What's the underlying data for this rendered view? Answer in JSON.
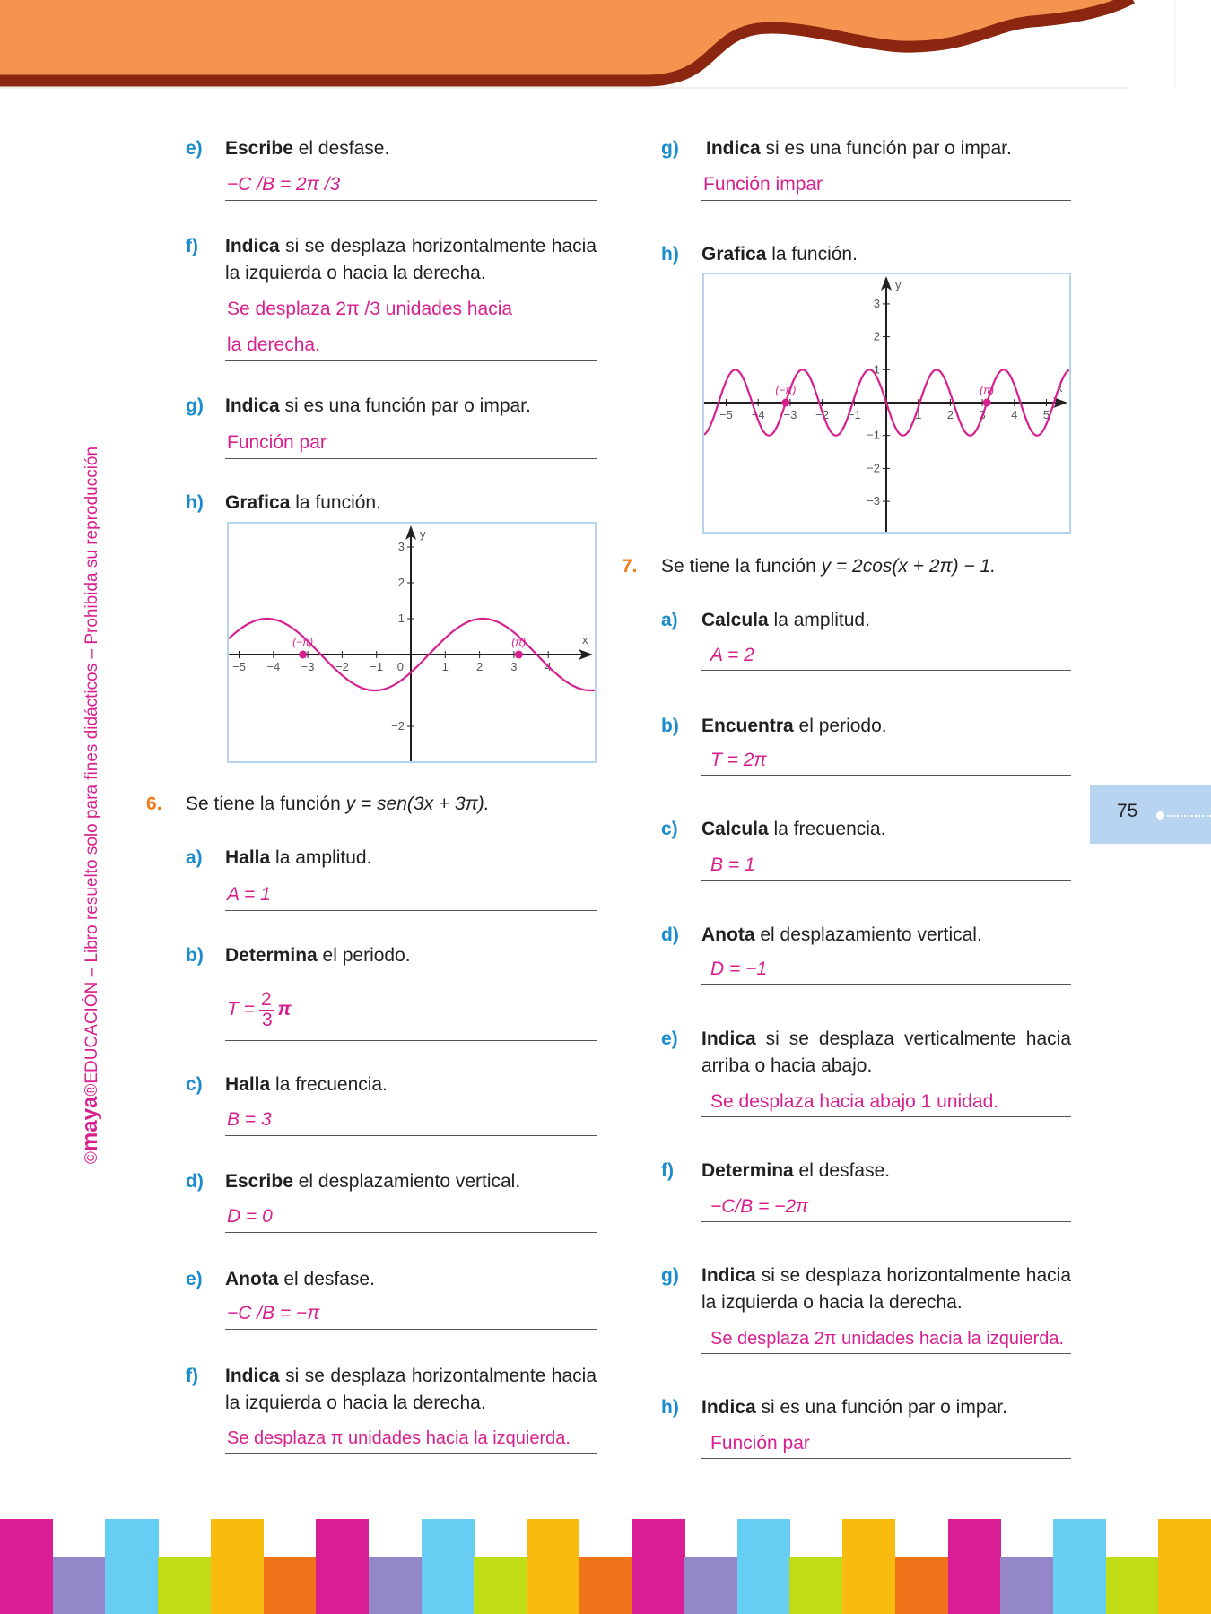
{
  "side_credit": {
    "brand": "maya",
    "text": "©maya®EDUCACIÓN – Libro resuelto solo para fines didácticos – Prohibida su reproducción",
    "prefix": "©",
    "suffix": "®EDUCACIÓN – Libro resuelto solo para fines didácticos – Prohibida su reproducción"
  },
  "page_number": "75",
  "colors": {
    "label": "#1a8bcd",
    "number": "#f07d1a",
    "answer": "#d81f8f",
    "header": "#f5944f",
    "header_edge": "#8b2710",
    "tab": "#b7d4f0"
  },
  "footer_colors": [
    "#d91e96",
    "#9487c9",
    "#68cdf3",
    "#c0dc17",
    "#f8bb0e",
    "#f0731a"
  ],
  "left": {
    "e": {
      "label": "e)",
      "bold": "Escribe",
      "rest": " el desfase.",
      "answer": "−C /B = 2π /3"
    },
    "f": {
      "label": "f)",
      "bold": "Indica",
      "rest": " si se desplaza horizontalmente hacia la izquierda o hacia la derecha.",
      "answer1": "Se desplaza 2π /3 unidades hacia",
      "answer2": "la derecha."
    },
    "g": {
      "label": "g)",
      "bold": "Indica",
      "rest": " si es una función par o impar.",
      "answer": "Función par"
    },
    "h": {
      "label": "h)",
      "bold": "Grafica",
      "rest": " la función."
    }
  },
  "q6": {
    "number": "6.",
    "statement_pre": "Se tiene la función ",
    "statement_math": "y = sen(3x + 3π).",
    "a": {
      "label": "a)",
      "bold": "Halla",
      "rest": " la amplitud.",
      "answer": "A = 1"
    },
    "b": {
      "label": "b)",
      "bold": "Determina",
      "rest": " el periodo.",
      "answer_pre": "T =",
      "answer_num": "2",
      "answer_den": "3",
      "answer_post": "π"
    },
    "c": {
      "label": "c)",
      "bold": "Halla",
      "rest": " la frecuencia.",
      "answer": "B = 3"
    },
    "d": {
      "label": "d)",
      "bold": "Escribe",
      "rest": " el desplazamiento vertical.",
      "answer": "D = 0"
    },
    "e": {
      "label": "e)",
      "bold": "Anota",
      "rest": " el desfase.",
      "answer": "−C /B = −π"
    },
    "f": {
      "label": "f)",
      "bold": "Indica",
      "rest": " si se desplaza horizontalmente hacia la izquierda o hacia la derecha.",
      "answer": "Se desplaza π unidades hacia la izquierda."
    },
    "g": {
      "label": "g)",
      "bold": "Indica",
      "rest": " si es una función par o impar.",
      "answer": "Función impar"
    },
    "h": {
      "label": "h)",
      "bold": "Grafica",
      "rest": " la función."
    }
  },
  "q7": {
    "number": "7.",
    "statement_pre": "Se tiene la función ",
    "statement_math": "y = 2cos(x + 2π) − 1.",
    "a": {
      "label": "a)",
      "bold": "Calcula",
      "rest": " la amplitud.",
      "answer": "A = 2"
    },
    "b": {
      "label": "b)",
      "bold": "Encuentra",
      "rest": " el periodo.",
      "answer": "T = 2π"
    },
    "c": {
      "label": "c)",
      "bold": "Calcula",
      "rest": " la frecuencia.",
      "answer": "B = 1"
    },
    "d": {
      "label": "d)",
      "bold": "Anota",
      "rest": " el desplazamiento vertical.",
      "answer": "D = −1"
    },
    "e": {
      "label": "e)",
      "bold": "Indica",
      "rest": " si se desplaza verticalmente hacia arriba o hacia abajo.",
      "answer": "Se desplaza hacia abajo 1 unidad."
    },
    "f": {
      "label": "f)",
      "bold": "Determina",
      "rest": " el desfase.",
      "answer": "−C/B = −2π"
    },
    "g": {
      "label": "g)",
      "bold": "Indica",
      "rest": " si se desplaza horizontalmente hacia la izquierda o hacia la derecha.",
      "answer": "Se desplaza 2π unidades hacia la izquierda."
    },
    "h": {
      "label": "h)",
      "bold": "Indica",
      "rest": " si es una función par o impar.",
      "answer": "Función par"
    }
  },
  "chart_data": [
    {
      "type": "line",
      "function": "cos",
      "amplitude": 1,
      "frequency": 1,
      "phase": -2.0944,
      "vertical_shift": 0,
      "xlim": [
        -5.3,
        5.3
      ],
      "ylim": [
        -3.0,
        3.7
      ],
      "x_ticks": [
        -5,
        -4,
        -3,
        -2,
        -1,
        1,
        2,
        3,
        4
      ],
      "x_tick_labels": [
        "−5",
        "−4",
        "−3",
        "−2",
        "−1",
        "1",
        "2",
        "3",
        "4"
      ],
      "y_ticks": [
        -2,
        1,
        2,
        3
      ],
      "y_tick_labels": [
        "−2",
        "1",
        "2",
        "3"
      ],
      "origin_label": "0",
      "xlabel": "x",
      "ylabel": "y",
      "grid": false,
      "points": [
        {
          "x": -3.1416,
          "y": 0,
          "label": "(−π)"
        },
        {
          "x": 3.1416,
          "y": 0,
          "label": "(π)"
        }
      ],
      "line_color": "#d81f8f"
    },
    {
      "type": "line",
      "function": "sen",
      "amplitude": 1,
      "frequency": 3,
      "phase": 9.4248,
      "vertical_shift": 0,
      "xlim": [
        -5.75,
        5.75
      ],
      "ylim": [
        -4.0,
        3.95
      ],
      "x_ticks": [
        -5,
        -4,
        -3,
        -2,
        -1,
        1,
        2,
        3,
        4,
        5
      ],
      "x_tick_labels": [
        "−5",
        "−4",
        "−3",
        "−2",
        "−1",
        "1",
        "2",
        "3",
        "4",
        "5"
      ],
      "y_ticks": [
        -3,
        -2,
        -1,
        1,
        2,
        3
      ],
      "y_tick_labels": [
        "−3",
        "−2",
        "−1",
        "1",
        "2",
        "3"
      ],
      "xlabel": "x",
      "ylabel": "y",
      "grid": false,
      "points": [
        {
          "x": -3.1416,
          "y": 0,
          "label": "(−π)"
        },
        {
          "x": 3.1416,
          "y": 0,
          "label": "(π)"
        }
      ],
      "line_color": "#d81f8f"
    }
  ]
}
